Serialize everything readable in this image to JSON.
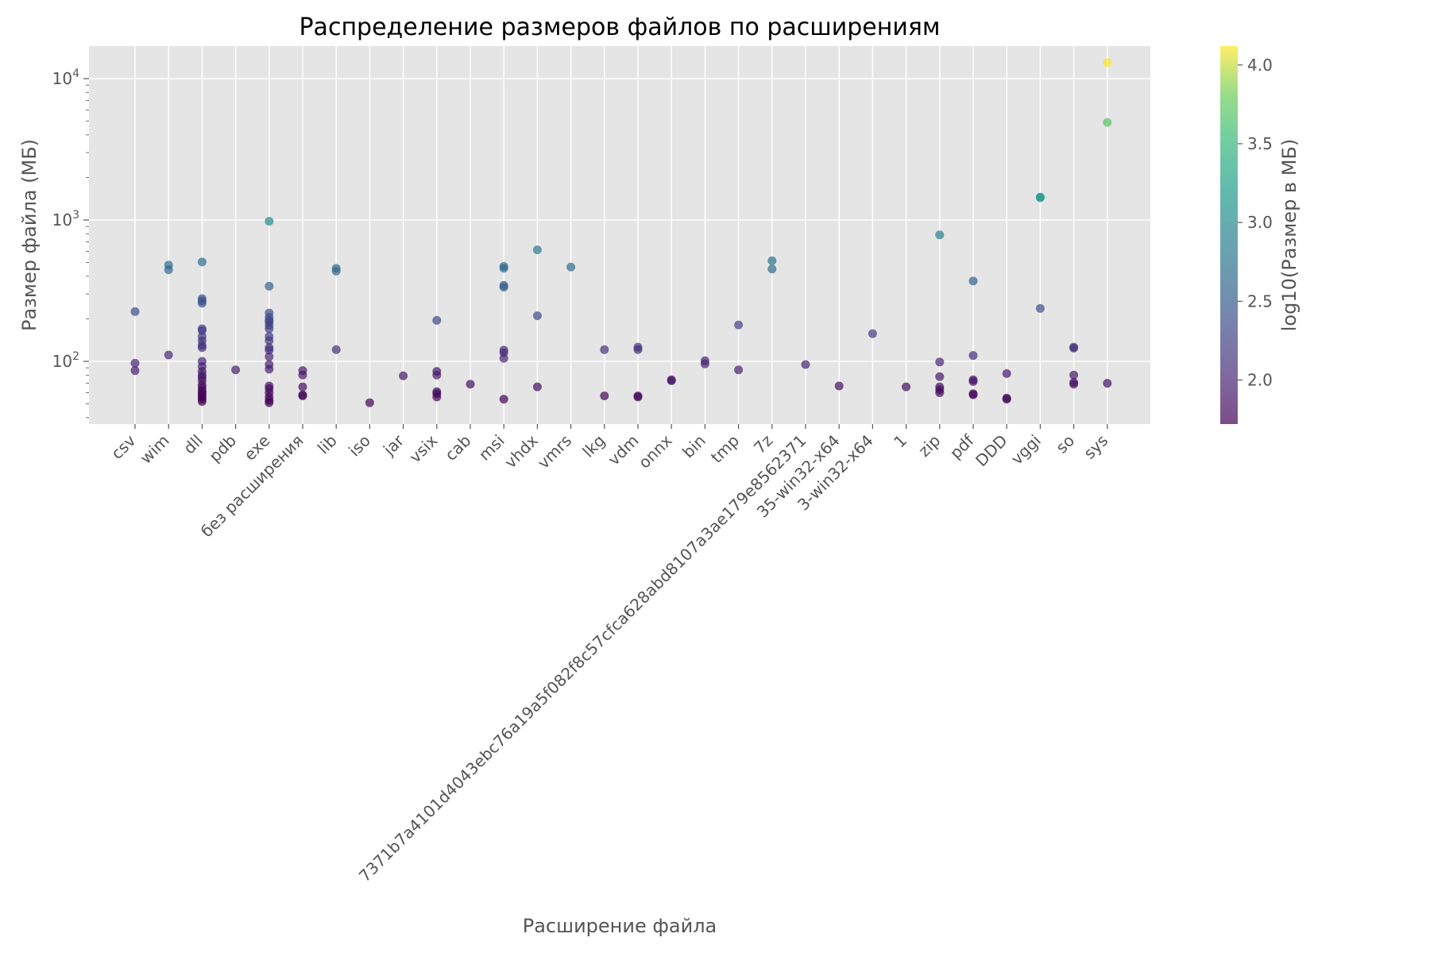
{
  "chart_data": {
    "type": "scatter",
    "title": "Распределение размеров файлов по расширениям",
    "xlabel": "Расширение файла",
    "ylabel": "Размер файла (МБ)",
    "yscale": "log",
    "ylim": [
      36,
      17000
    ],
    "y_ticks": [
      {
        "value": 100,
        "base": "10",
        "exp": "2"
      },
      {
        "value": 1000,
        "base": "10",
        "exp": "3"
      },
      {
        "value": 10000,
        "base": "10",
        "exp": "4"
      }
    ],
    "grid": true,
    "colormap": "viridis",
    "colorbar": {
      "label": "log10(Размер в МБ)",
      "range": [
        1.72,
        4.12
      ],
      "ticks": [
        "2.0",
        "2.5",
        "3.0",
        "3.5",
        "4.0"
      ]
    },
    "categories": [
      "csv",
      "wim",
      "dll",
      "pdb",
      "exe",
      "без расширения",
      "lib",
      "iso",
      "jar",
      "vsix",
      "cab",
      "msi",
      "vhdx",
      "vmrs",
      "lkg",
      "vdm",
      "onnx",
      "bin",
      "tmp",
      "7z",
      "7371b7a4101d4043ebc76a19a5f082f8c57cfca628abd8107a3ae179e8562371",
      "35-win32-x64",
      "3-win32-x64",
      "1",
      "zip",
      "pdf",
      "DDD",
      "vggi",
      "so",
      "sys"
    ],
    "points": [
      {
        "x": "csv",
        "y": [
          225,
          97,
          86
        ]
      },
      {
        "x": "wim",
        "y": [
          480,
          445,
          111
        ]
      },
      {
        "x": "dll",
        "y": [
          505,
          278,
          268,
          258,
          170,
          165,
          150,
          140,
          130,
          125,
          100,
          92,
          85,
          80,
          77,
          73,
          68,
          65,
          62,
          60,
          58,
          56,
          54,
          52
        ]
      },
      {
        "x": "pdb",
        "y": [
          87
        ]
      },
      {
        "x": "exe",
        "y": [
          980,
          340,
          220,
          205,
          195,
          190,
          180,
          170,
          150,
          140,
          125,
          120,
          108,
          95,
          88,
          67,
          64,
          60,
          56,
          53,
          51
        ]
      },
      {
        "x": "без расширения",
        "y": [
          86,
          80,
          66,
          58,
          57
        ]
      },
      {
        "x": "lib",
        "y": [
          455,
          435,
          121
        ]
      },
      {
        "x": "iso",
        "y": [
          51
        ]
      },
      {
        "x": "jar",
        "y": [
          79
        ]
      },
      {
        "x": "vsix",
        "y": [
          195,
          85,
          80,
          61,
          59,
          56
        ]
      },
      {
        "x": "cab",
        "y": [
          69
        ]
      },
      {
        "x": "msi",
        "y": [
          470,
          455,
          345,
          335,
          120,
          115,
          105,
          54
        ]
      },
      {
        "x": "vhdx",
        "y": [
          615,
          210,
          66
        ]
      },
      {
        "x": "vmrs",
        "y": [
          465
        ]
      },
      {
        "x": "lkg",
        "y": [
          121,
          57
        ]
      },
      {
        "x": "vdm",
        "y": [
          126,
          121,
          57,
          56
        ]
      },
      {
        "x": "onnx",
        "y": [
          74,
          73
        ]
      },
      {
        "x": "bin",
        "y": [
          101,
          96
        ]
      },
      {
        "x": "tmp",
        "y": [
          181,
          87
        ]
      },
      {
        "x": "7z",
        "y": [
          515,
          450
        ]
      },
      {
        "x": "7371b7a4101d4043ebc76a19a5f082f8c57cfca628abd8107a3ae179e8562371",
        "y": [
          95
        ]
      },
      {
        "x": "35-win32-x64",
        "y": [
          67
        ]
      },
      {
        "x": "3-win32-x64",
        "y": [
          157
        ]
      },
      {
        "x": "1",
        "y": [
          66
        ]
      },
      {
        "x": "zip",
        "y": [
          785,
          99,
          78,
          66,
          63,
          60
        ]
      },
      {
        "x": "pdf",
        "y": [
          370,
          110,
          74,
          72,
          59,
          58
        ]
      },
      {
        "x": "DDD",
        "y": [
          82,
          55,
          54
        ]
      },
      {
        "x": "vggi",
        "y": [
          1450,
          1440,
          237
        ]
      },
      {
        "x": "so",
        "y": [
          126,
          124,
          80,
          71,
          69
        ]
      },
      {
        "x": "sys",
        "y": [
          13000,
          4900,
          70
        ]
      }
    ]
  }
}
